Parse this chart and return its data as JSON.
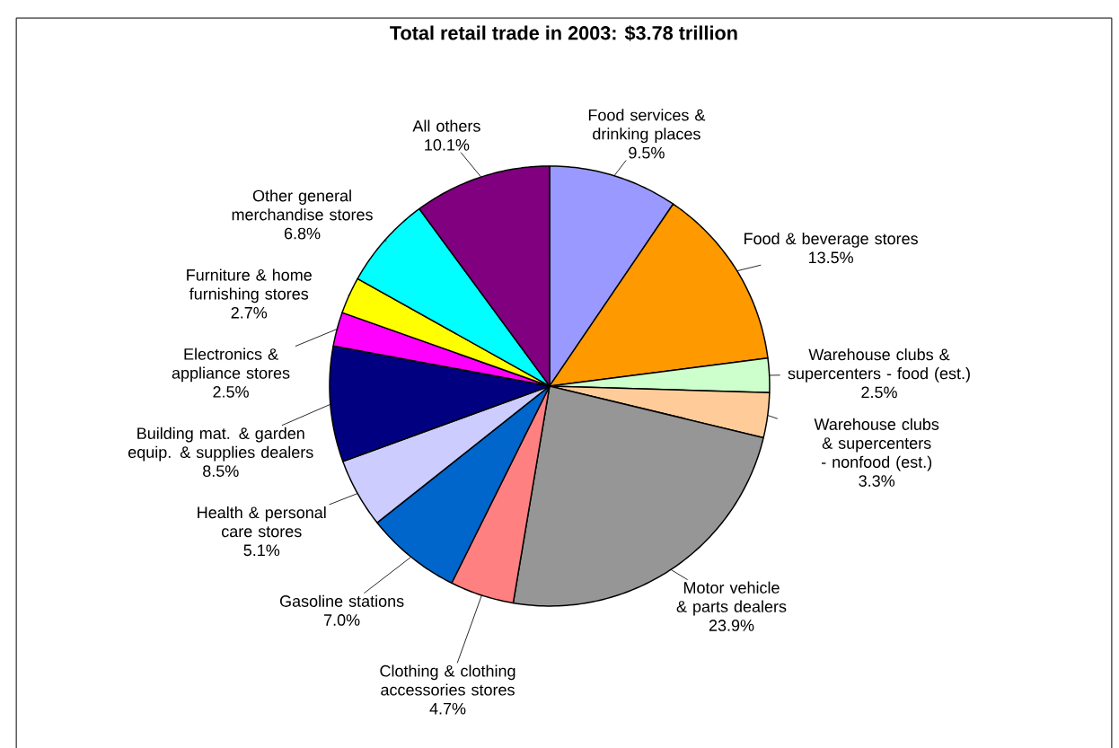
{
  "chart_data": {
    "type": "pie",
    "title": "Total retail trade in 2003: $3.78 trillion",
    "categories": [
      "Food services & drinking places",
      "Food & beverage stores",
      "Warehouse clubs & supercenters - food (est.)",
      "Warehouse clubs & supercenters - nonfood (est.)",
      "Motor vehicle & parts dealers",
      "Clothing & clothing accessories stores",
      "Gasoline stations",
      "Health & personal care stores",
      "Building mat. & garden equip. & supplies dealers",
      "Electronics & appliance stores",
      "Furniture & home furnishing stores",
      "Other general merchandise stores",
      "All others"
    ],
    "values": [
      9.5,
      13.5,
      2.5,
      3.3,
      23.9,
      4.7,
      7.0,
      5.1,
      8.5,
      2.5,
      2.7,
      6.8,
      10.1
    ],
    "value_labels": [
      "9.5%",
      "13.5%",
      "2.5%",
      "3.3%",
      "23.9%",
      "4.7%",
      "7.0%",
      "5.1%",
      "8.5%",
      "2.5%",
      "2.7%",
      "6.8%",
      "10.1%"
    ],
    "colors": [
      "#9999ff",
      "#ff9900",
      "#ccffcc",
      "#ffcc99",
      "#969696",
      "#ff8080",
      "#0066cc",
      "#ccccff",
      "#000080",
      "#ff00ff",
      "#ffff00",
      "#00ffff",
      "#800080"
    ]
  }
}
